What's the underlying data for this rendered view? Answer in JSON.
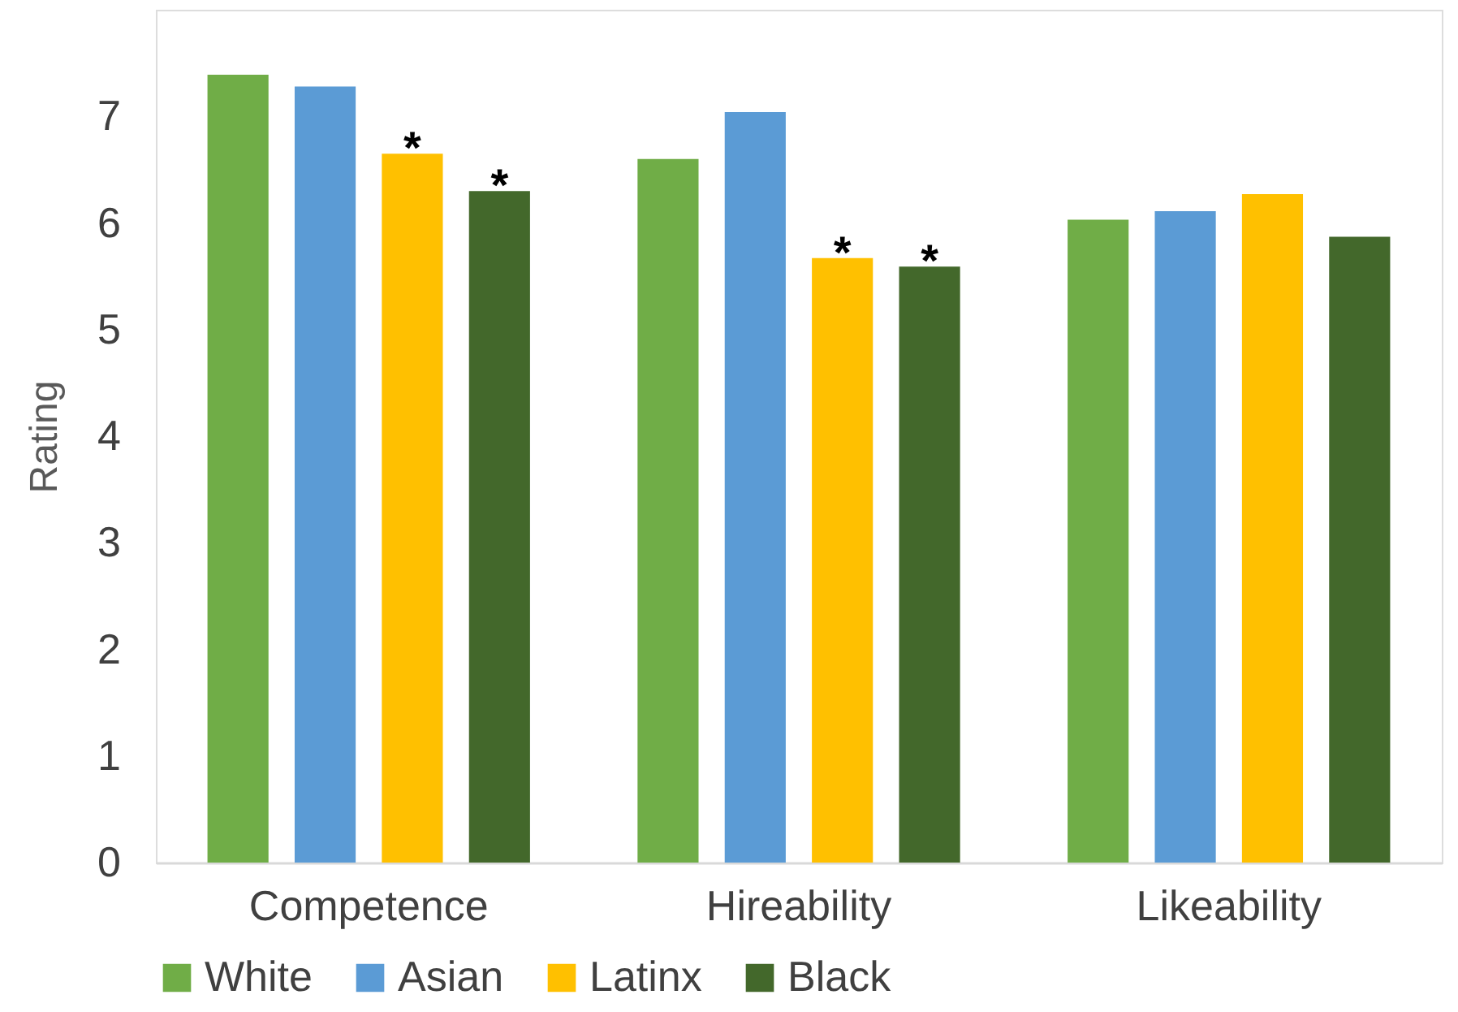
{
  "chart_data": {
    "type": "bar",
    "ylabel": "Rating",
    "categories": [
      "Competence",
      "Hireability",
      "Likeability"
    ],
    "series": [
      {
        "name": "White",
        "color": "#70ad47",
        "values": [
          7.39,
          6.6,
          6.03
        ]
      },
      {
        "name": "Asian",
        "color": "#5b9bd5",
        "values": [
          7.28,
          7.04,
          6.11
        ]
      },
      {
        "name": "Latinx",
        "color": "#ffc000",
        "values": [
          6.65,
          5.67,
          6.27
        ],
        "value_labels": [
          "*",
          "*",
          null
        ]
      },
      {
        "name": "Black",
        "color": "#43682b",
        "values": [
          6.3,
          5.59,
          5.87
        ],
        "value_labels": [
          "*",
          "*",
          null
        ]
      }
    ],
    "ylim": [
      0,
      8
    ],
    "yticks": [
      0,
      1,
      2,
      3,
      4,
      5,
      6,
      7
    ],
    "grid": false,
    "legend": "bottom"
  }
}
